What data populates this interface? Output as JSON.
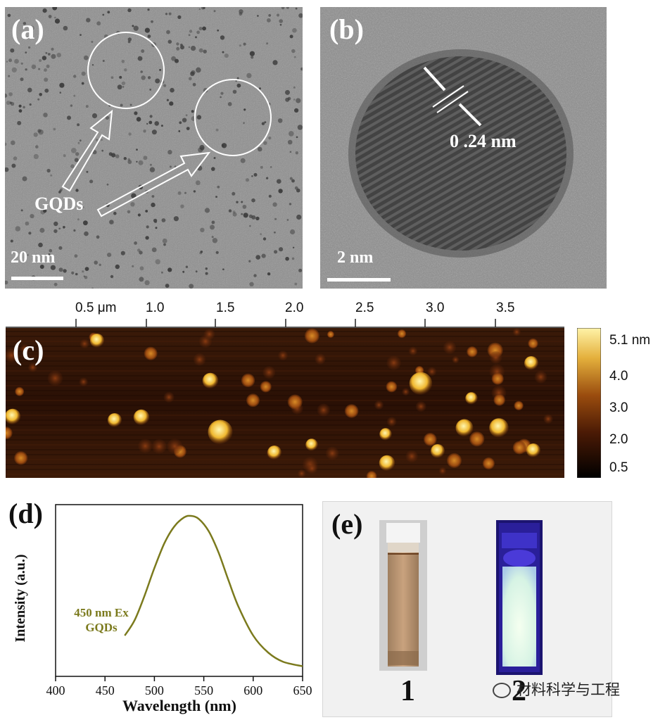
{
  "panels": {
    "a": {
      "label": "(a)",
      "annotation": "GQDs",
      "scale_bar": "20 nm"
    },
    "b": {
      "label": "(b)",
      "lattice_spacing": "0 .24 nm",
      "scale_bar": "2 nm"
    },
    "c": {
      "label": "(c)",
      "x_ticks": [
        "0.5 μm",
        "1.0",
        "1.5",
        "2.0",
        "2.5",
        "3.0",
        "3.5"
      ],
      "colorbar_ticks": [
        "5.1 nm",
        "4.0",
        "3.0",
        "2.0",
        "0.5"
      ],
      "colors": {
        "low": "#000000",
        "mid": "#8a3c0a",
        "high": "#fff1a0"
      }
    },
    "d": {
      "label": "(d)",
      "legend_line1": "450 nm Ex",
      "legend_line2": "GQDs",
      "series_color": "#7b7a1d"
    },
    "e": {
      "label": "(e)",
      "cuvette_1_label": "1",
      "cuvette_2_label": "2"
    }
  },
  "chart_data": {
    "type": "line",
    "xlabel": "Wavelength (nm)",
    "ylabel": "Intensity (a.u.)",
    "xlim": [
      400,
      650
    ],
    "x_ticks": [
      400,
      450,
      500,
      550,
      600,
      650
    ],
    "series": [
      {
        "name": "450 nm Ex GQDs",
        "x": [
          470,
          480,
          490,
          500,
          510,
          520,
          530,
          537,
          545,
          555,
          565,
          575,
          585,
          600,
          615,
          630,
          650
        ],
        "y": [
          0.22,
          0.32,
          0.48,
          0.66,
          0.82,
          0.93,
          0.99,
          1.0,
          0.98,
          0.9,
          0.76,
          0.58,
          0.41,
          0.22,
          0.11,
          0.05,
          0.02
        ]
      }
    ]
  },
  "watermark": "材料科学与工程"
}
